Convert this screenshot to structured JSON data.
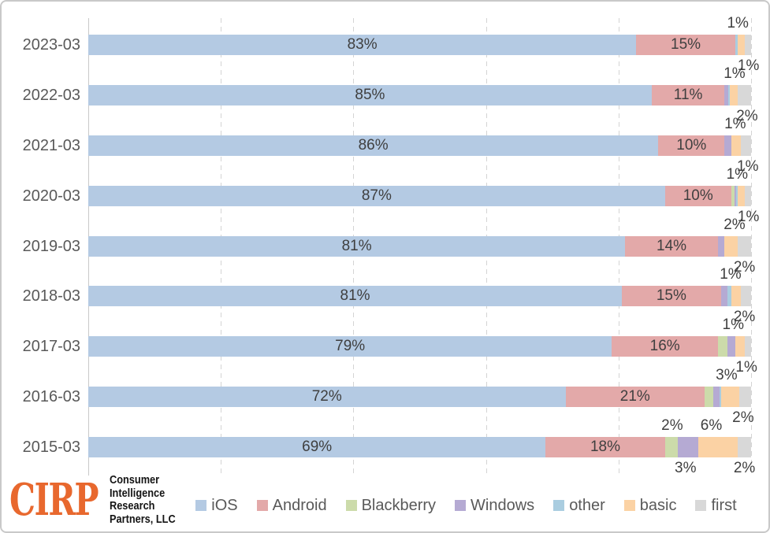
{
  "chart_data": {
    "type": "bar",
    "orientation": "horizontal-stacked",
    "title": "",
    "xlabel": "",
    "ylabel": "",
    "xlim": [
      0,
      100
    ],
    "gridline_step_pct": 20,
    "grid": true,
    "legend_position": "bottom",
    "categories": [
      "2023-03",
      "2022-03",
      "2021-03",
      "2020-03",
      "2019-03",
      "2018-03",
      "2017-03",
      "2016-03",
      "2015-03"
    ],
    "series_names": [
      "iOS",
      "Android",
      "Blackberry",
      "Windows",
      "other",
      "basic",
      "first"
    ],
    "series_colors": {
      "iOS": "#B4CAE3",
      "Android": "#E3A9A9",
      "Blackberry": "#CCDBAA",
      "Windows": "#B5AAD3",
      "other": "#AACDE0",
      "basic": "#FBD2A4",
      "first": "#D8D8D8"
    },
    "rows": [
      {
        "category": "2023-03",
        "segments": [
          {
            "name": "iOS",
            "value": 83,
            "label": "83%"
          },
          {
            "name": "Android",
            "value": 15,
            "label": "15%"
          },
          {
            "name": "other",
            "value": 0.4
          },
          {
            "name": "basic",
            "value": 1
          },
          {
            "name": "first",
            "value": 1
          }
        ],
        "labels_above": [
          {
            "text": "1%",
            "x_pct": 98.0
          }
        ],
        "labels_below": [
          {
            "text": "1%",
            "x_pct": 99.6
          }
        ]
      },
      {
        "category": "2022-03",
        "segments": [
          {
            "name": "iOS",
            "value": 85,
            "label": "85%"
          },
          {
            "name": "Android",
            "value": 11,
            "label": "11%"
          },
          {
            "name": "Windows",
            "value": 0.6
          },
          {
            "name": "other",
            "value": 0.2
          },
          {
            "name": "basic",
            "value": 1.2
          },
          {
            "name": "first",
            "value": 2
          }
        ],
        "labels_above": [
          {
            "text": "1%",
            "x_pct": 97.5
          }
        ],
        "labels_below": [
          {
            "text": "2%",
            "x_pct": 99.4
          }
        ]
      },
      {
        "category": "2021-03",
        "segments": [
          {
            "name": "iOS",
            "value": 86,
            "label": "86%"
          },
          {
            "name": "Android",
            "value": 10,
            "label": "10%"
          },
          {
            "name": "Windows",
            "value": 1
          },
          {
            "name": "basic",
            "value": 1.5
          },
          {
            "name": "first",
            "value": 1.5
          }
        ],
        "labels_above": [
          {
            "text": "1%",
            "x_pct": 97.6
          }
        ],
        "labels_below": [
          {
            "text": "1%",
            "x_pct": 99.5
          }
        ]
      },
      {
        "category": "2020-03",
        "segments": [
          {
            "name": "iOS",
            "value": 87,
            "label": "87%"
          },
          {
            "name": "Android",
            "value": 10,
            "label": "10%"
          },
          {
            "name": "Blackberry",
            "value": 0.5
          },
          {
            "name": "Windows",
            "value": 0.3
          },
          {
            "name": "other",
            "value": 0.2
          },
          {
            "name": "basic",
            "value": 1
          },
          {
            "name": "first",
            "value": 1
          }
        ],
        "labels_above": [
          {
            "text": "1%",
            "x_pct": 97.9
          }
        ],
        "labels_below": [
          {
            "text": "1%",
            "x_pct": 99.6
          }
        ]
      },
      {
        "category": "2019-03",
        "segments": [
          {
            "name": "iOS",
            "value": 81,
            "label": "81%"
          },
          {
            "name": "Android",
            "value": 14,
            "label": "14%"
          },
          {
            "name": "Windows",
            "value": 1
          },
          {
            "name": "basic",
            "value": 2
          },
          {
            "name": "first",
            "value": 2
          }
        ],
        "labels_above": [
          {
            "text": "2%",
            "x_pct": 97.5
          }
        ],
        "labels_below": [
          {
            "text": "2%",
            "x_pct": 99.0
          }
        ]
      },
      {
        "category": "2018-03",
        "segments": [
          {
            "name": "iOS",
            "value": 81,
            "label": "81%"
          },
          {
            "name": "Android",
            "value": 15,
            "label": "15%"
          },
          {
            "name": "Windows",
            "value": 1
          },
          {
            "name": "other",
            "value": 0.6
          },
          {
            "name": "basic",
            "value": 1.4
          },
          {
            "name": "first",
            "value": 1.6
          }
        ],
        "labels_above": [
          {
            "text": "1%",
            "x_pct": 96.9
          }
        ],
        "labels_below": [
          {
            "text": "2%",
            "x_pct": 99.0
          }
        ]
      },
      {
        "category": "2017-03",
        "segments": [
          {
            "name": "iOS",
            "value": 79,
            "label": "79%"
          },
          {
            "name": "Android",
            "value": 16,
            "label": "16%"
          },
          {
            "name": "Blackberry",
            "value": 1.4
          },
          {
            "name": "Windows",
            "value": 1.2
          },
          {
            "name": "basic",
            "value": 1.4
          },
          {
            "name": "first",
            "value": 1
          }
        ],
        "labels_above": [
          {
            "text": "1%",
            "x_pct": 97.3
          }
        ],
        "labels_below": [
          {
            "text": "1%",
            "x_pct": 99.3
          }
        ]
      },
      {
        "category": "2016-03",
        "segments": [
          {
            "name": "iOS",
            "value": 72,
            "label": "72%"
          },
          {
            "name": "Android",
            "value": 21,
            "label": "21%"
          },
          {
            "name": "Blackberry",
            "value": 1.3
          },
          {
            "name": "Windows",
            "value": 1
          },
          {
            "name": "other",
            "value": 0.2
          },
          {
            "name": "basic",
            "value": 2.7
          },
          {
            "name": "first",
            "value": 1.8
          }
        ],
        "labels_above": [
          {
            "text": "3%",
            "x_pct": 96.3
          }
        ],
        "labels_below": [
          {
            "text": "2%",
            "x_pct": 98.8
          }
        ]
      },
      {
        "category": "2015-03",
        "segments": [
          {
            "name": "iOS",
            "value": 69,
            "label": "69%"
          },
          {
            "name": "Android",
            "value": 18,
            "label": "18%"
          },
          {
            "name": "Blackberry",
            "value": 2
          },
          {
            "name": "Windows",
            "value": 3
          },
          {
            "name": "basic",
            "value": 6
          },
          {
            "name": "first",
            "value": 2
          }
        ],
        "labels_above": [
          {
            "text": "2%",
            "x_pct": 88.1
          },
          {
            "text": "6%",
            "x_pct": 94.0
          }
        ],
        "labels_below": [
          {
            "text": "3%",
            "x_pct": 90.1
          },
          {
            "text": "2%",
            "x_pct": 99.0
          }
        ]
      }
    ],
    "legend": [
      "iOS",
      "Android",
      "Blackberry",
      "Windows",
      "other",
      "basic",
      "first"
    ]
  },
  "logo": {
    "acronym": "CIRP",
    "lines": [
      "Consumer",
      "Intelligence",
      "Research",
      "Partners, LLC"
    ],
    "accent_color": "#E8682E"
  },
  "style_colors": {
    "gridline": "#D4D4D4",
    "axis": "#C9C9C9",
    "data_label": "#3F3F3F",
    "category_label": "#595959",
    "legend_label": "#595959",
    "border": "#C9C9C9"
  }
}
